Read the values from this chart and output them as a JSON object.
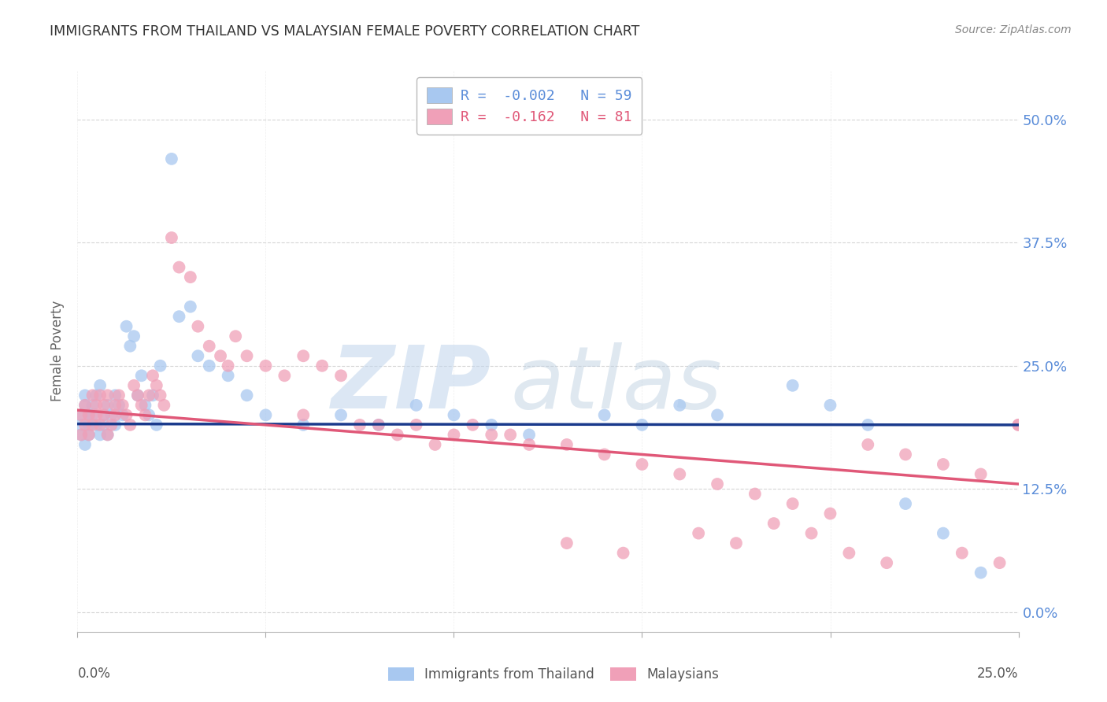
{
  "title": "IMMIGRANTS FROM THAILAND VS MALAYSIAN FEMALE POVERTY CORRELATION CHART",
  "source": "Source: ZipAtlas.com",
  "ylabel": "Female Poverty",
  "blue_label": "Immigrants from Thailand",
  "pink_label": "Malaysians",
  "blue_R": -0.002,
  "blue_N": 59,
  "pink_R": -0.162,
  "pink_N": 81,
  "blue_color": "#A8C8F0",
  "pink_color": "#F0A0B8",
  "blue_line_color": "#1A3A8C",
  "pink_line_color": "#E05878",
  "background_color": "#FFFFFF",
  "grid_color": "#CCCCCC",
  "title_color": "#333333",
  "axis_label_color": "#5B8DD9",
  "source_color": "#888888",
  "xlim": [
    0.0,
    0.25
  ],
  "ylim": [
    -0.02,
    0.55
  ],
  "yticks": [
    0.0,
    0.125,
    0.25,
    0.375,
    0.5
  ],
  "xticks": [
    0.0,
    0.05,
    0.1,
    0.15,
    0.2,
    0.25
  ],
  "blue_trend_y0": 0.191,
  "blue_trend_y1": 0.19,
  "pink_trend_y0": 0.205,
  "pink_trend_y1": 0.13,
  "blue_x": [
    0.001,
    0.001,
    0.001,
    0.002,
    0.002,
    0.002,
    0.003,
    0.003,
    0.003,
    0.004,
    0.004,
    0.005,
    0.005,
    0.006,
    0.006,
    0.007,
    0.007,
    0.008,
    0.008,
    0.009,
    0.01,
    0.01,
    0.011,
    0.012,
    0.013,
    0.014,
    0.015,
    0.016,
    0.017,
    0.018,
    0.019,
    0.02,
    0.021,
    0.022,
    0.025,
    0.027,
    0.03,
    0.032,
    0.035,
    0.04,
    0.045,
    0.05,
    0.06,
    0.07,
    0.08,
    0.09,
    0.1,
    0.11,
    0.12,
    0.14,
    0.15,
    0.16,
    0.17,
    0.19,
    0.2,
    0.21,
    0.22,
    0.23,
    0.24
  ],
  "blue_y": [
    0.18,
    0.19,
    0.2,
    0.17,
    0.21,
    0.22,
    0.19,
    0.2,
    0.18,
    0.21,
    0.2,
    0.19,
    0.22,
    0.18,
    0.23,
    0.2,
    0.19,
    0.21,
    0.18,
    0.2,
    0.22,
    0.19,
    0.21,
    0.2,
    0.29,
    0.27,
    0.28,
    0.22,
    0.24,
    0.21,
    0.2,
    0.22,
    0.19,
    0.25,
    0.46,
    0.3,
    0.31,
    0.26,
    0.25,
    0.24,
    0.22,
    0.2,
    0.19,
    0.2,
    0.19,
    0.21,
    0.2,
    0.19,
    0.18,
    0.2,
    0.19,
    0.21,
    0.2,
    0.23,
    0.21,
    0.19,
    0.11,
    0.08,
    0.04
  ],
  "pink_x": [
    0.001,
    0.001,
    0.002,
    0.002,
    0.003,
    0.003,
    0.004,
    0.004,
    0.005,
    0.005,
    0.006,
    0.006,
    0.007,
    0.007,
    0.008,
    0.008,
    0.009,
    0.01,
    0.01,
    0.011,
    0.012,
    0.013,
    0.014,
    0.015,
    0.016,
    0.017,
    0.018,
    0.019,
    0.02,
    0.021,
    0.022,
    0.023,
    0.025,
    0.027,
    0.03,
    0.032,
    0.035,
    0.038,
    0.04,
    0.042,
    0.045,
    0.05,
    0.055,
    0.06,
    0.065,
    0.07,
    0.08,
    0.09,
    0.1,
    0.11,
    0.12,
    0.13,
    0.14,
    0.15,
    0.16,
    0.17,
    0.18,
    0.19,
    0.2,
    0.21,
    0.22,
    0.23,
    0.24,
    0.25,
    0.06,
    0.075,
    0.085,
    0.095,
    0.105,
    0.115,
    0.13,
    0.145,
    0.165,
    0.175,
    0.185,
    0.195,
    0.205,
    0.215,
    0.235,
    0.245,
    0.255
  ],
  "pink_y": [
    0.18,
    0.2,
    0.19,
    0.21,
    0.2,
    0.18,
    0.22,
    0.19,
    0.21,
    0.2,
    0.19,
    0.22,
    0.21,
    0.2,
    0.22,
    0.18,
    0.19,
    0.21,
    0.2,
    0.22,
    0.21,
    0.2,
    0.19,
    0.23,
    0.22,
    0.21,
    0.2,
    0.22,
    0.24,
    0.23,
    0.22,
    0.21,
    0.38,
    0.35,
    0.34,
    0.29,
    0.27,
    0.26,
    0.25,
    0.28,
    0.26,
    0.25,
    0.24,
    0.26,
    0.25,
    0.24,
    0.19,
    0.19,
    0.18,
    0.18,
    0.17,
    0.17,
    0.16,
    0.15,
    0.14,
    0.13,
    0.12,
    0.11,
    0.1,
    0.17,
    0.16,
    0.15,
    0.14,
    0.19,
    0.2,
    0.19,
    0.18,
    0.17,
    0.19,
    0.18,
    0.07,
    0.06,
    0.08,
    0.07,
    0.09,
    0.08,
    0.06,
    0.05,
    0.06,
    0.05,
    0.19
  ]
}
